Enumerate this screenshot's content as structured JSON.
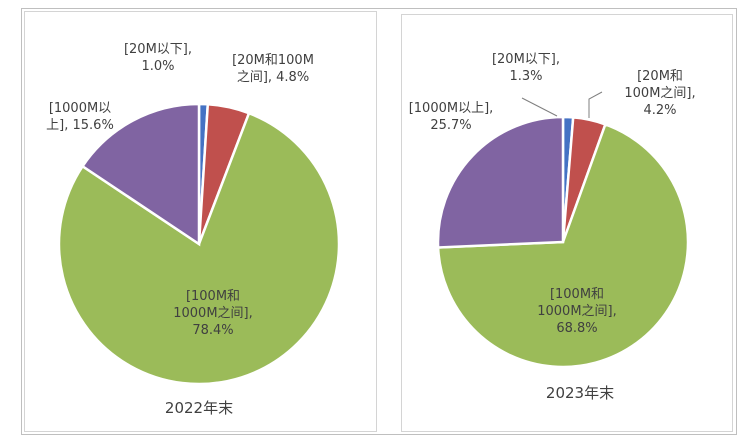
{
  "chart_data": [
    {
      "type": "pie",
      "caption": "2022年末",
      "slices": [
        {
          "category": "20M以下",
          "value": 1.0,
          "color": "#4472c4",
          "label_lines": [
            "[20M以下],",
            "1.0%"
          ]
        },
        {
          "category": "20M和100M之间",
          "value": 4.8,
          "color": "#c0504d",
          "label_lines": [
            "[20M和100M",
            "之间], 4.8%"
          ]
        },
        {
          "category": "100M和1000M之间",
          "value": 78.4,
          "color": "#9bbb59",
          "label_lines": [
            "[100M和",
            "1000M之间],",
            "78.4%"
          ]
        },
        {
          "category": "1000M以上",
          "value": 15.6,
          "color": "#8064a2",
          "label_lines": [
            "[1000M以",
            "上], 15.6%"
          ]
        }
      ]
    },
    {
      "type": "pie",
      "caption": "2023年末",
      "slices": [
        {
          "category": "20M以下",
          "value": 1.3,
          "color": "#4472c4",
          "label_lines": [
            "[20M以下],",
            "1.3%"
          ]
        },
        {
          "category": "20M和100M之间",
          "value": 4.2,
          "color": "#c0504d",
          "label_lines": [
            "[20M和",
            "100M之间],",
            "4.2%"
          ]
        },
        {
          "category": "100M和1000M之间",
          "value": 68.8,
          "color": "#9bbb59",
          "label_lines": [
            "[100M和",
            "1000M之间],",
            "68.8%"
          ]
        },
        {
          "category": "1000M以上",
          "value": 25.7,
          "color": "#8064a2",
          "label_lines": [
            "[1000M以上],",
            "25.7%"
          ]
        }
      ]
    }
  ]
}
